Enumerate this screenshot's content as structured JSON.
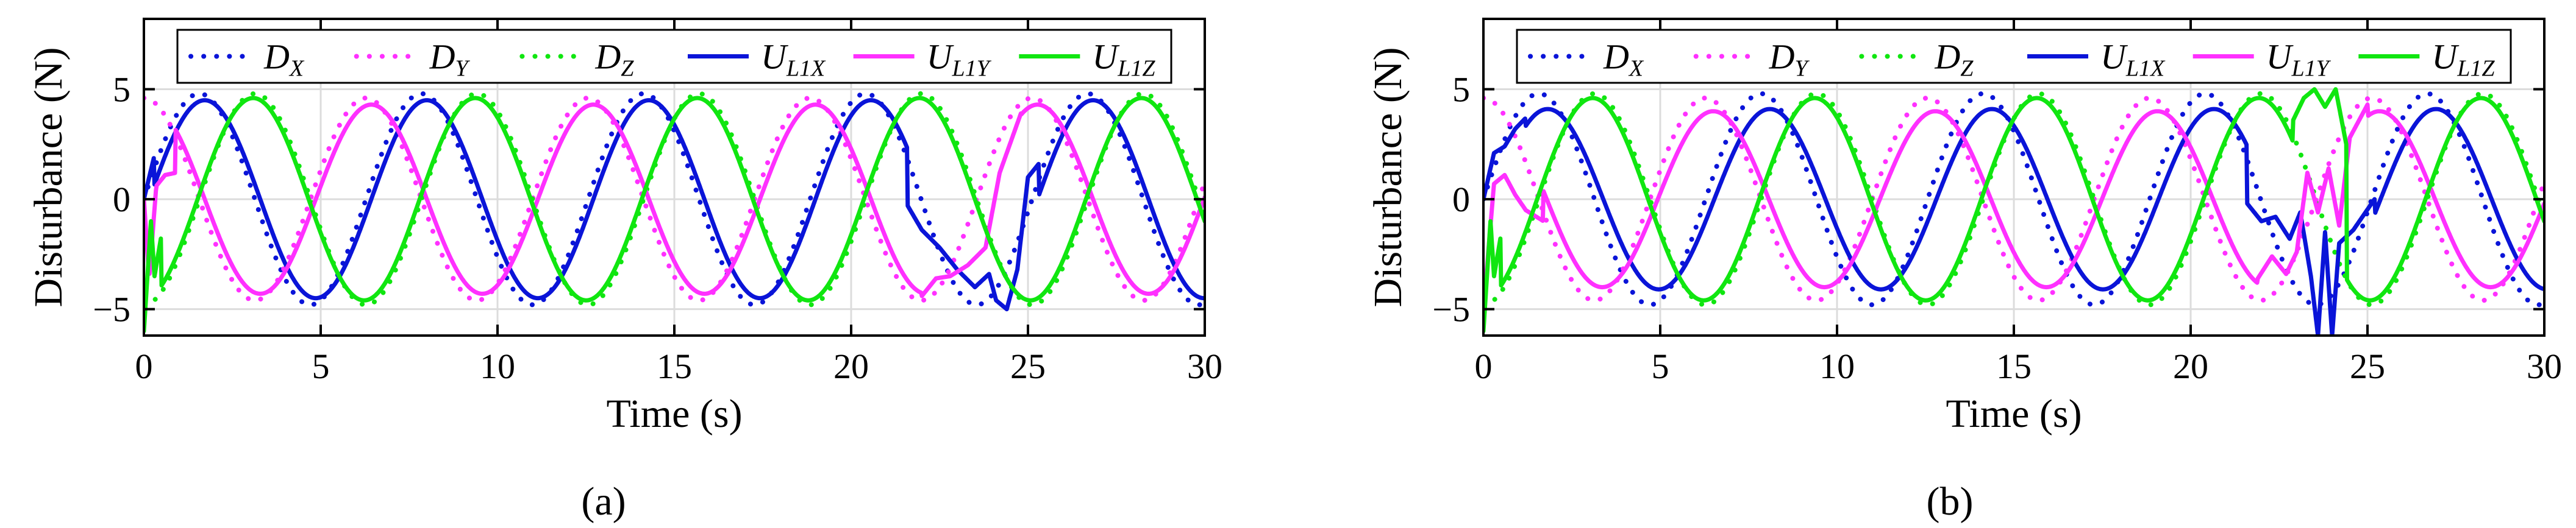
{
  "chart_data": [
    {
      "type": "line",
      "panel": "a",
      "caption": "(a)",
      "xlabel": "Time (s)",
      "ylabel": "Disturbance (N)",
      "xlim": [
        0,
        30
      ],
      "ylim": [
        -6.2,
        8.2
      ],
      "xticks": [
        0,
        5,
        10,
        15,
        20,
        25,
        30
      ],
      "yticks": [
        -5,
        0,
        5
      ],
      "grid": true,
      "legend": {
        "placement": "top",
        "orientation": "horizontal"
      },
      "series": [
        {
          "name": "D_X",
          "main": "D",
          "sub": "X",
          "style": "dotted",
          "color": "#0a14d8",
          "amp": 4.8,
          "period": 6.28,
          "phase": 0.0,
          "onset": 0
        },
        {
          "name": "D_Y",
          "main": "D",
          "sub": "Y",
          "style": "dotted",
          "color": "#ff30ff",
          "amp": 4.6,
          "period": 6.28,
          "phase": 1.571,
          "onset": 0
        },
        {
          "name": "D_Z",
          "main": "D",
          "sub": "Z",
          "style": "dotted",
          "color": "#10e610",
          "amp": 4.8,
          "period": 6.28,
          "phase": -1.571,
          "onset": 0
        },
        {
          "name": "U_L1X",
          "main": "U",
          "sub": "L1X",
          "style": "solid",
          "color": "#0a14d8",
          "amp": 4.5,
          "period": 6.28,
          "phase": -0.15,
          "onset": 0.3,
          "transient": [
            [
              0.0,
              0.0
            ],
            [
              0.3,
              2.0
            ],
            [
              0.7,
              2.9
            ]
          ],
          "artifact": {
            "start": 21.6,
            "end": 25.3,
            "points": [
              [
                21.6,
                -0.3
              ],
              [
                22.0,
                -1.4
              ],
              [
                22.5,
                -2.2
              ],
              [
                23.0,
                -3.2
              ],
              [
                23.5,
                -4.0
              ],
              [
                23.9,
                -3.4
              ],
              [
                24.1,
                -4.6
              ],
              [
                24.4,
                -5.0
              ],
              [
                24.7,
                -3.2
              ],
              [
                25.0,
                1.0
              ],
              [
                25.3,
                1.6
              ]
            ]
          }
        },
        {
          "name": "U_L1Y",
          "main": "U",
          "sub": "L1Y",
          "style": "solid",
          "color": "#ff30ff",
          "amp": 4.3,
          "period": 6.28,
          "phase": 1.42,
          "onset": 0.9,
          "transient": [
            [
              0.0,
              0.0
            ],
            [
              0.15,
              -3.6
            ],
            [
              0.35,
              0.6
            ],
            [
              0.6,
              1.1
            ],
            [
              0.9,
              1.2
            ]
          ],
          "artifact": {
            "start": 22.0,
            "end": 24.8,
            "points": [
              [
                22.0,
                -4.4
              ],
              [
                22.4,
                -3.6
              ],
              [
                22.8,
                -3.5
              ],
              [
                23.3,
                -3.0
              ],
              [
                23.8,
                -2.2
              ],
              [
                24.2,
                1.2
              ],
              [
                24.8,
                3.9
              ]
            ]
          }
        },
        {
          "name": "U_L1Z",
          "main": "U",
          "sub": "L1Z",
          "style": "solid",
          "color": "#10e610",
          "amp": 4.6,
          "period": 6.28,
          "phase": -1.52,
          "onset": 0.5,
          "transient": [
            [
              0.0,
              -6.0
            ],
            [
              0.2,
              -1.0
            ],
            [
              0.3,
              -3.5
            ],
            [
              0.5,
              -1.6
            ]
          ]
        }
      ]
    },
    {
      "type": "line",
      "panel": "b",
      "caption": "(b)",
      "xlabel": "Time (s)",
      "ylabel": "Disturbance (N)",
      "xlim": [
        0,
        30
      ],
      "ylim": [
        -6.2,
        8.2
      ],
      "xticks": [
        0,
        5,
        10,
        15,
        20,
        25,
        30
      ],
      "yticks": [
        -5,
        0,
        5
      ],
      "grid": true,
      "legend": {
        "placement": "top",
        "orientation": "horizontal"
      },
      "series": [
        {
          "name": "D_X",
          "main": "D",
          "sub": "X",
          "style": "dotted",
          "color": "#0a14d8",
          "amp": 4.8,
          "period": 6.28,
          "phase": 0.0,
          "onset": 0
        },
        {
          "name": "D_Y",
          "main": "D",
          "sub": "Y",
          "style": "dotted",
          "color": "#ff30ff",
          "amp": 4.6,
          "period": 6.28,
          "phase": 1.571,
          "onset": 0
        },
        {
          "name": "D_Z",
          "main": "D",
          "sub": "Z",
          "style": "dotted",
          "color": "#10e610",
          "amp": 4.8,
          "period": 6.28,
          "phase": -1.571,
          "onset": 0
        },
        {
          "name": "U_L1X",
          "main": "U",
          "sub": "L1X",
          "style": "solid",
          "color": "#0a14d8",
          "amp": 4.1,
          "period": 6.28,
          "phase": -0.25,
          "onset": 1.2,
          "transient": [
            [
              0.0,
              0.0
            ],
            [
              0.3,
              2.1
            ],
            [
              0.6,
              2.4
            ],
            [
              0.9,
              3.2
            ],
            [
              1.2,
              3.7
            ]
          ],
          "artifact": {
            "start": 21.6,
            "end": 25.2,
            "points": [
              [
                21.6,
                -0.2
              ],
              [
                22.0,
                -1.0
              ],
              [
                22.4,
                -0.8
              ],
              [
                22.8,
                -1.8
              ],
              [
                23.1,
                -0.6
              ],
              [
                23.4,
                -3.5
              ],
              [
                23.6,
                -6.2
              ],
              [
                23.8,
                -1.5
              ],
              [
                24.0,
                -6.2
              ],
              [
                24.2,
                -2.0
              ],
              [
                24.6,
                -1.4
              ],
              [
                25.2,
                0.0
              ]
            ]
          }
        },
        {
          "name": "U_L1Y",
          "main": "U",
          "sub": "L1Y",
          "style": "solid",
          "color": "#ff30ff",
          "amp": 4.0,
          "period": 6.28,
          "phase": 1.35,
          "onset": 1.7,
          "transient": [
            [
              0.0,
              -5.0
            ],
            [
              0.3,
              0.7
            ],
            [
              0.6,
              1.1
            ],
            [
              0.9,
              0.2
            ],
            [
              1.2,
              -0.5
            ],
            [
              1.7,
              -1.0
            ]
          ],
          "artifact": {
            "start": 21.9,
            "end": 25.0,
            "points": [
              [
                21.9,
                -3.6
              ],
              [
                22.3,
                -2.6
              ],
              [
                22.7,
                -3.4
              ],
              [
                23.0,
                -2.4
              ],
              [
                23.3,
                1.2
              ],
              [
                23.6,
                -0.6
              ],
              [
                23.9,
                1.4
              ],
              [
                24.2,
                -1.2
              ],
              [
                24.5,
                2.8
              ],
              [
                25.0,
                4.3
              ]
            ]
          }
        },
        {
          "name": "U_L1Z",
          "main": "U",
          "sub": "L1Z",
          "style": "solid",
          "color": "#10e610",
          "amp": 4.6,
          "period": 6.28,
          "phase": -1.52,
          "onset": 0.5,
          "transient": [
            [
              0.0,
              -6.0
            ],
            [
              0.2,
              -1.0
            ],
            [
              0.3,
              -3.5
            ],
            [
              0.5,
              -1.6
            ]
          ],
          "artifact": {
            "start": 22.9,
            "end": 24.4,
            "points": [
              [
                22.9,
                3.6
              ],
              [
                23.2,
                4.6
              ],
              [
                23.5,
                5.0
              ],
              [
                23.8,
                4.2
              ],
              [
                24.1,
                5.0
              ],
              [
                24.4,
                2.5
              ]
            ]
          }
        }
      ]
    }
  ]
}
